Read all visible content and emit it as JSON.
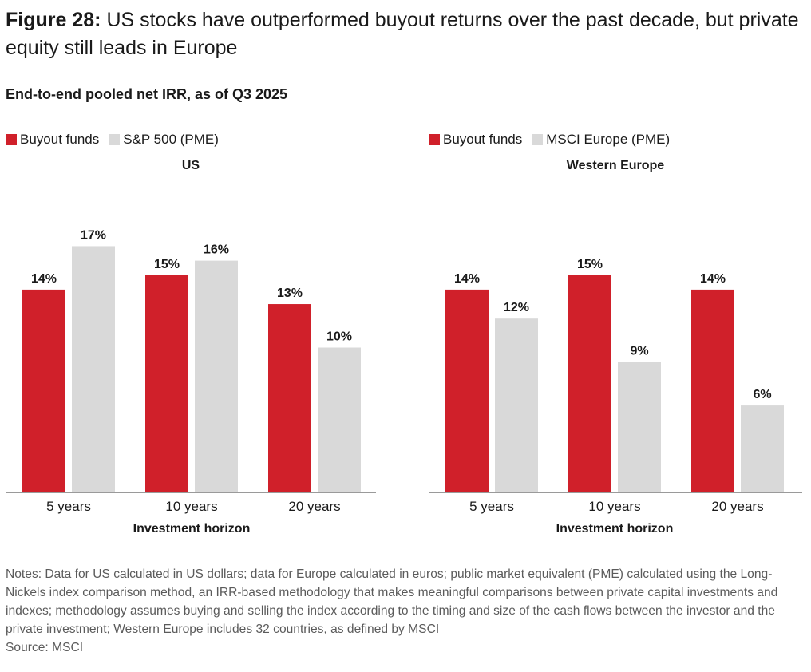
{
  "figure": {
    "number": "Figure 28:",
    "title": "US stocks have outperformed buyout returns over the past decade, but private equity still leads in Europe",
    "subtitle": "End-to-end pooled net IRR, as of Q3 2025"
  },
  "colors": {
    "buyout": "#d0202a",
    "index": "#d9d9d9",
    "accent": "#d0202a"
  },
  "notes": "Notes: Data for US calculated in US dollars; data for Europe calculated in euros; public market equivalent (PME) calculated using the Long-Nickels index comparison method, an IRR-based methodology that makes meaningful comparisons between private capital investments and indexes; methodology assumes buying and selling the index according to the timing and size of the cash flows between the investor and the private investment; Western Europe includes 32 countries, as defined by MSCI",
  "source": "Source: MSCI",
  "chart_data": [
    {
      "type": "bar",
      "title": "US",
      "xlabel": "Investment horizon",
      "ylabel": "",
      "categories": [
        "5 years",
        "10 years",
        "20 years"
      ],
      "series": [
        {
          "name": "Buyout funds",
          "values": [
            14,
            15,
            13
          ]
        },
        {
          "name": "S&P 500 (PME)",
          "values": [
            17,
            16,
            10
          ]
        }
      ],
      "value_labels": [
        [
          "14%",
          "15%",
          "13%"
        ],
        [
          "17%",
          "16%",
          "10%"
        ]
      ],
      "ylim": [
        0,
        20
      ]
    },
    {
      "type": "bar",
      "title": "Western Europe",
      "xlabel": "Investment horizon",
      "ylabel": "",
      "categories": [
        "5 years",
        "10 years",
        "20 years"
      ],
      "series": [
        {
          "name": "Buyout funds",
          "values": [
            14,
            15,
            14
          ]
        },
        {
          "name": "MSCI Europe (PME)",
          "values": [
            12,
            9,
            6
          ]
        }
      ],
      "value_labels": [
        [
          "14%",
          "15%",
          "14%"
        ],
        [
          "12%",
          "9%",
          "6%"
        ]
      ],
      "ylim": [
        0,
        20
      ]
    }
  ]
}
